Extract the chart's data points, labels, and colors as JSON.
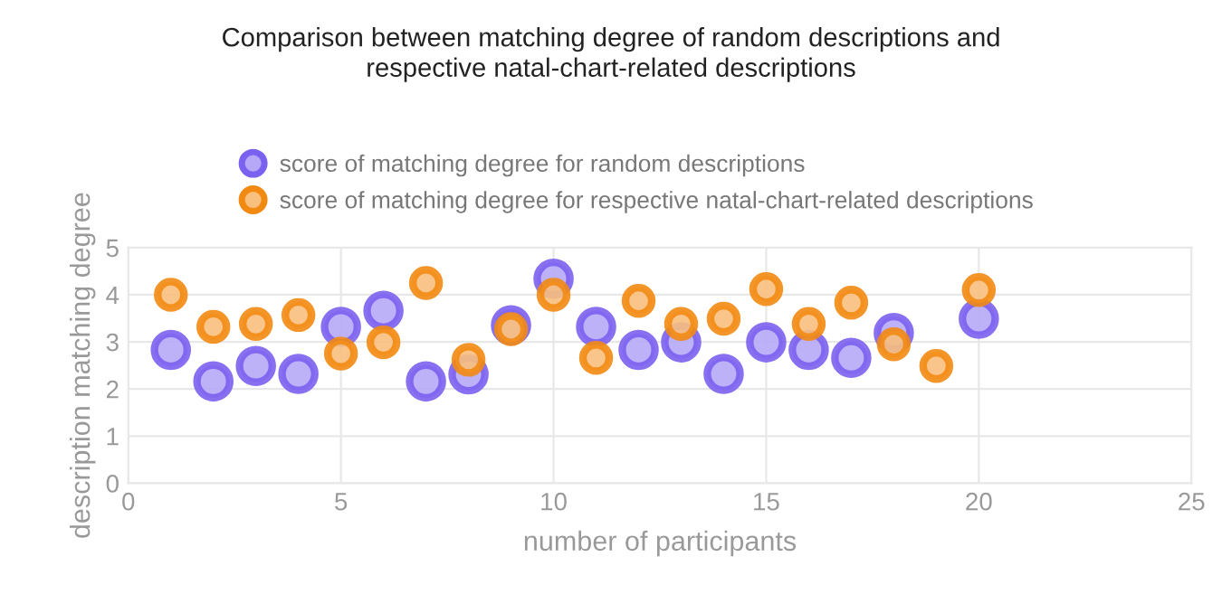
{
  "chart_data": {
    "type": "scatter",
    "title": "Comparison between matching degree of random descriptions and\nrespective natal-chart-related descriptions",
    "xlabel": "number of participants",
    "ylabel": "description matching degree",
    "xlim": [
      0,
      25
    ],
    "xticks": [
      0,
      5,
      10,
      15,
      20,
      25
    ],
    "ylim": [
      0,
      5
    ],
    "yticks": [
      0,
      1,
      2,
      3,
      4,
      5
    ],
    "grid": true,
    "legend": "top left",
    "marker": "circle",
    "series": [
      {
        "name": "score of matching degree for random descriptions",
        "color": "#7b61f0",
        "x": [
          1,
          2,
          3,
          4,
          5,
          6,
          7,
          8,
          9,
          10,
          11,
          12,
          13,
          14,
          15,
          16,
          17,
          18,
          20
        ],
        "values": [
          2.83,
          2.16,
          2.49,
          2.32,
          3.32,
          3.66,
          2.16,
          2.31,
          3.35,
          4.34,
          3.32,
          2.83,
          2.99,
          2.32,
          2.99,
          2.83,
          2.66,
          3.19,
          3.49
        ]
      },
      {
        "name": "score of matching degree for respective natal-chart-related descriptions",
        "color": "#f28a12",
        "x": [
          1,
          2,
          3,
          4,
          5,
          6,
          7,
          8,
          9,
          10,
          11,
          12,
          13,
          14,
          15,
          16,
          17,
          18,
          19,
          20
        ],
        "values": [
          4.0,
          3.32,
          3.38,
          3.57,
          2.75,
          2.99,
          4.25,
          2.62,
          3.27,
          4.0,
          2.66,
          3.87,
          3.38,
          3.49,
          4.12,
          3.38,
          3.83,
          2.95,
          2.49,
          4.1
        ]
      }
    ]
  }
}
